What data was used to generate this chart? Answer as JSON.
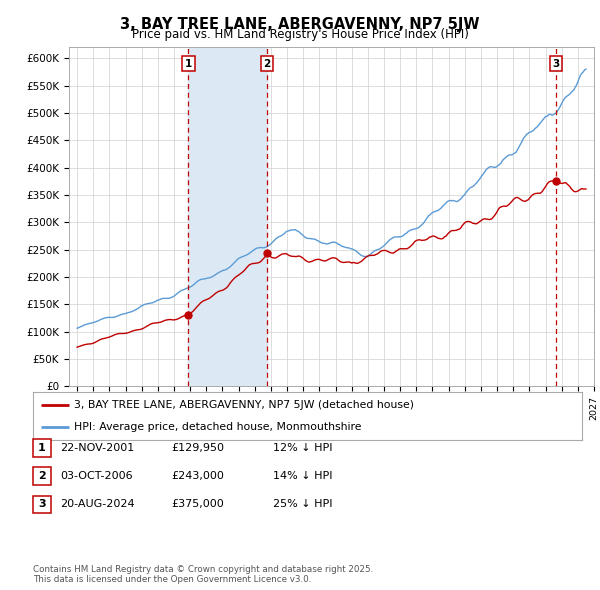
{
  "title": "3, BAY TREE LANE, ABERGAVENNY, NP7 5JW",
  "subtitle": "Price paid vs. HM Land Registry's House Price Index (HPI)",
  "xlim": [
    1994.5,
    2027.0
  ],
  "ylim": [
    0,
    620000
  ],
  "yticks": [
    0,
    50000,
    100000,
    150000,
    200000,
    250000,
    300000,
    350000,
    400000,
    450000,
    500000,
    550000,
    600000
  ],
  "ytick_labels": [
    "£0",
    "£50K",
    "£100K",
    "£150K",
    "£200K",
    "£250K",
    "£300K",
    "£350K",
    "£400K",
    "£450K",
    "£500K",
    "£550K",
    "£600K"
  ],
  "hpi_color": "#5b9bd5",
  "price_color": "#c00000",
  "sale_marker_color": "#c00000",
  "purchase_dates": [
    2001.896,
    2006.751,
    2024.635
  ],
  "purchase_prices": [
    129950,
    243000,
    375000
  ],
  "purchase_labels": [
    "1",
    "2",
    "3"
  ],
  "vline_color": "#c00000",
  "fill_color": "#dce9f5",
  "legend_price_label": "3, BAY TREE LANE, ABERGAVENNY, NP7 5JW (detached house)",
  "legend_hpi_label": "HPI: Average price, detached house, Monmouthshire",
  "table_rows": [
    [
      "1",
      "22-NOV-2001",
      "£129,950",
      "12% ↓ HPI"
    ],
    [
      "2",
      "03-OCT-2006",
      "£243,000",
      "14% ↓ HPI"
    ],
    [
      "3",
      "20-AUG-2024",
      "£375,000",
      "25% ↓ HPI"
    ]
  ],
  "footnote": "Contains HM Land Registry data © Crown copyright and database right 2025.\nThis data is licensed under the Open Government Licence v3.0.",
  "background_color": "#ffffff",
  "grid_color": "#d0d0d0"
}
